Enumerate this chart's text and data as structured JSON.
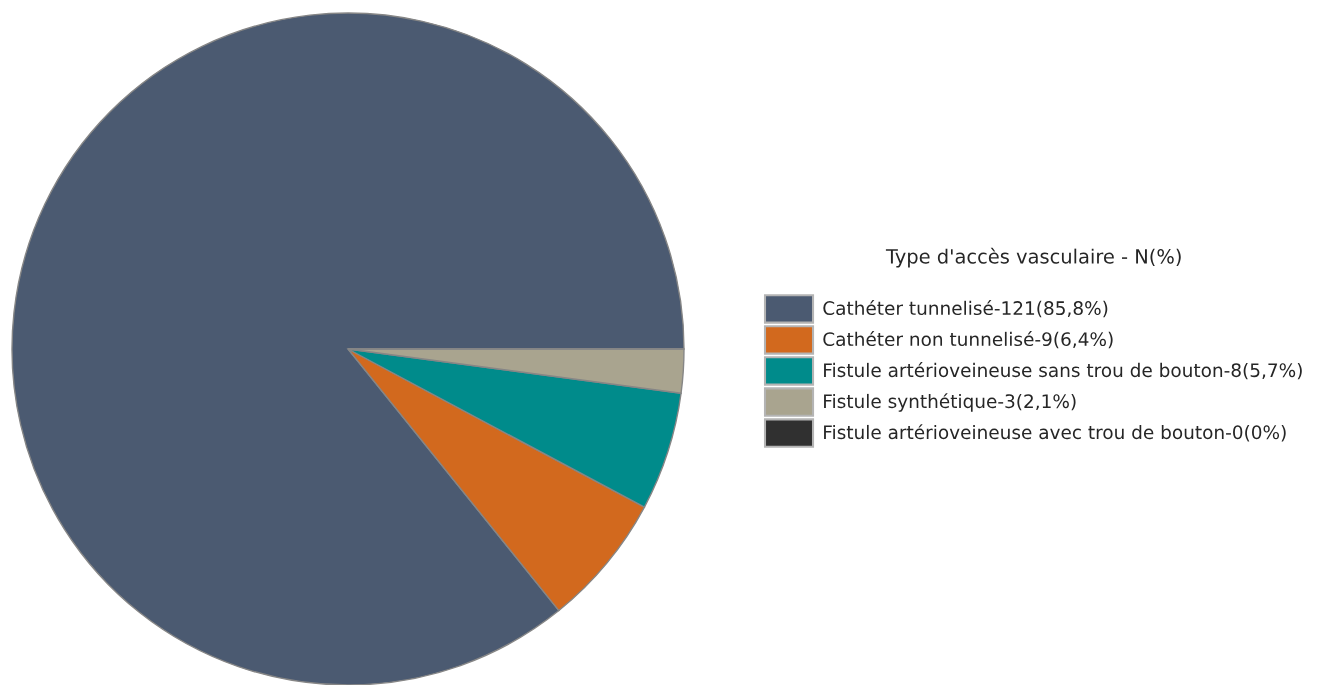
{
  "chart_data": {
    "type": "pie",
    "legend_title": "Type d'accès vasculaire - N(%)",
    "categories": [
      "Cathéter tunnelisé-121(85,8%)",
      "Cathéter non tunnelisé-9(6,4%)",
      "Fistule artérioveineuse sans trou de bouton-8(5,7%)",
      "Fistule synthétique-3(2,1%)",
      "Fistule artérioveineuse avec trou de bouton-0(0%)"
    ],
    "values": [
      85.8,
      6.4,
      5.7,
      2.1,
      0
    ],
    "colors": [
      "#4b5a71",
      "#d2691e",
      "#008b8b",
      "#a9a48f",
      "#303030"
    ],
    "legend": "right"
  }
}
